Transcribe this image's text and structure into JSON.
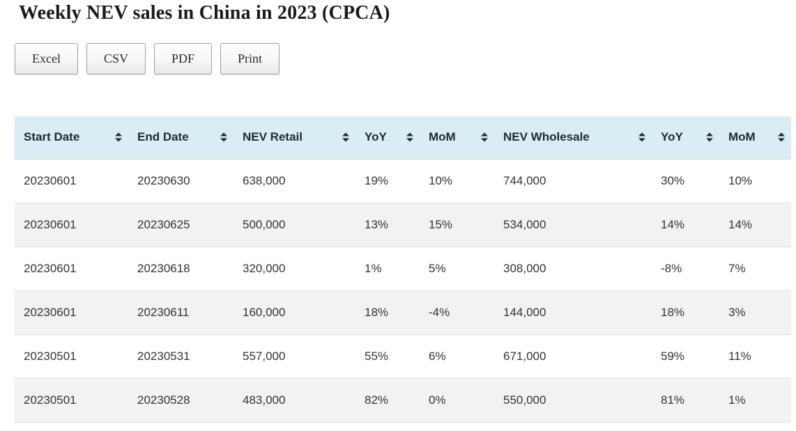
{
  "title": "Weekly NEV sales in China in 2023 (CPCA)",
  "toolbar": {
    "buttons": [
      {
        "id": "excel",
        "label": "Excel"
      },
      {
        "id": "csv",
        "label": "CSV"
      },
      {
        "id": "pdf",
        "label": "PDF"
      },
      {
        "id": "print",
        "label": "Print"
      }
    ]
  },
  "table": {
    "columns": [
      {
        "id": "start-date",
        "label": "Start Date",
        "sortable": true
      },
      {
        "id": "end-date",
        "label": "End Date",
        "sortable": true
      },
      {
        "id": "nev-retail",
        "label": "NEV Retail",
        "sortable": true
      },
      {
        "id": "retail-yoy",
        "label": "YoY",
        "sortable": true
      },
      {
        "id": "retail-mom",
        "label": "MoM",
        "sortable": true
      },
      {
        "id": "nev-wholesale",
        "label": "NEV Wholesale",
        "sortable": true
      },
      {
        "id": "wholesale-yoy",
        "label": "YoY",
        "sortable": true
      },
      {
        "id": "wholesale-mom",
        "label": "MoM",
        "sortable": true
      }
    ],
    "rows": [
      [
        "20230601",
        "20230630",
        "638,000",
        "19%",
        "10%",
        "744,000",
        "30%",
        "10%"
      ],
      [
        "20230601",
        "20230625",
        "500,000",
        "13%",
        "15%",
        "534,000",
        "14%",
        "14%"
      ],
      [
        "20230601",
        "20230618",
        "320,000",
        "1%",
        "5%",
        "308,000",
        "-8%",
        "7%"
      ],
      [
        "20230601",
        "20230611",
        "160,000",
        "18%",
        "-4%",
        "144,000",
        "18%",
        "3%"
      ],
      [
        "20230501",
        "20230531",
        "557,000",
        "55%",
        "6%",
        "671,000",
        "59%",
        "11%"
      ],
      [
        "20230501",
        "20230528",
        "483,000",
        "82%",
        "0%",
        "550,000",
        "81%",
        "1%"
      ]
    ]
  },
  "icons": {
    "sort": "sort-both-icon"
  },
  "colors": {
    "header_bg": "#d9edf5",
    "row_alt_bg": "#f2f2f2",
    "row_border": "#dddddd",
    "body_text": "#333333",
    "header_text": "#1f2a30"
  }
}
